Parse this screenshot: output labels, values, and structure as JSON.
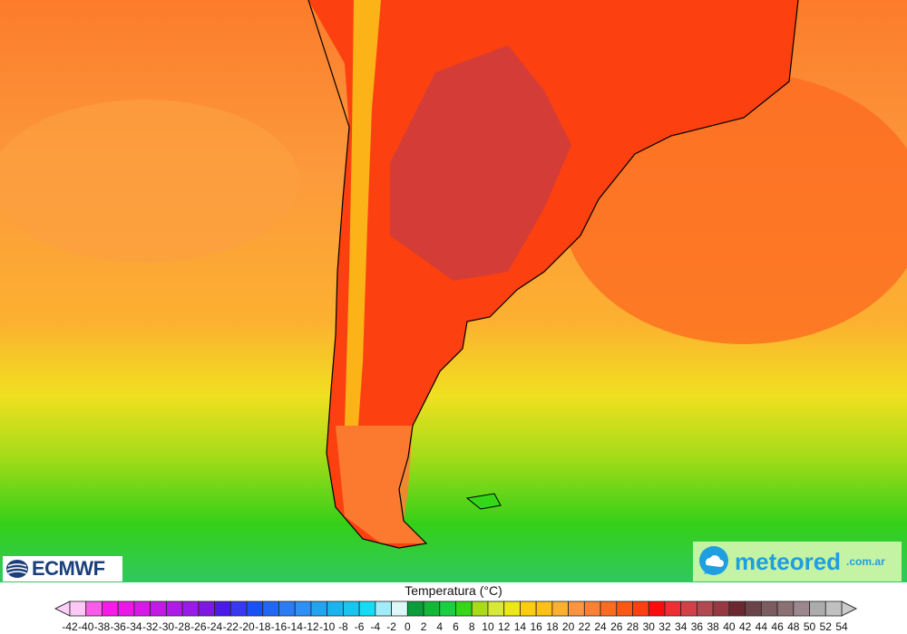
{
  "logos": {
    "left": "ECMWF",
    "right_main": "meteored",
    "right_suffix": ".com.ar"
  },
  "legend": {
    "title": "Temperatura (°C)",
    "labels": [
      "-42",
      "-40",
      "-38",
      "-36",
      "-34",
      "-32",
      "-30",
      "-28",
      "-26",
      "-24",
      "-22",
      "-20",
      "-18",
      "-16",
      "-14",
      "-12",
      "-10",
      "-8",
      "-6",
      "-4",
      "-2",
      "0",
      "2",
      "4",
      "6",
      "8",
      "10",
      "12",
      "14",
      "16",
      "18",
      "20",
      "22",
      "24",
      "26",
      "28",
      "30",
      "32",
      "34",
      "36",
      "38",
      "40",
      "42",
      "44",
      "46",
      "48",
      "50",
      "52",
      "54"
    ],
    "colors": [
      "#fdc8f8",
      "#f85ce8",
      "#f81ae8",
      "#ec18e8",
      "#d81ae8",
      "#c41ae8",
      "#b01ae8",
      "#9c1ae8",
      "#7d18e0",
      "#4a1ae6",
      "#3838f0",
      "#1a50f8",
      "#2068f4",
      "#2a7cf4",
      "#2c90f4",
      "#22a4f0",
      "#1ab4f0",
      "#18c4f0",
      "#14dcf4",
      "#a0ecf8",
      "#dcf8f8",
      "#0c9c3c",
      "#14b838",
      "#18d040",
      "#34d818",
      "#a8dc18",
      "#d8e838",
      "#ece818",
      "#fccc10",
      "#fcc018",
      "#fcb030",
      "#fc9440",
      "#fc8034",
      "#fc6c20",
      "#fc5814",
      "#fc4010",
      "#fc0c0c",
      "#f02c34",
      "#d44048",
      "#b44850",
      "#983840",
      "#6c2830",
      "#6c4448",
      "#7c5c60",
      "#8c7074",
      "#9c888c",
      "#acacac",
      "#c0c0c0"
    ],
    "below_color": "#fdd0fa",
    "above_color": "#cccccc"
  }
}
